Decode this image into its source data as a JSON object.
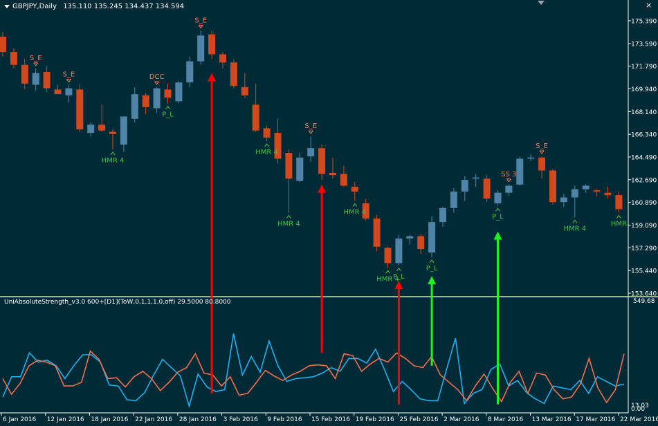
{
  "window": {
    "title": "GBPJPY,Daily",
    "ohlc": "135.110 135.245 134.437 134.594",
    "close_symbol": "×"
  },
  "indicator": {
    "title": "UniAbsoluteStrength_v3.0 600+[D1](ToW,0,1,1,1,0,off) 29.5000 80.8000",
    "top_value": "549.68",
    "bottom_value_a": "13.03",
    "bottom_value_b": "0.00"
  },
  "colors": {
    "background": "#002b36",
    "bull": "#4f83a8",
    "bear": "#d3491d",
    "pattern_bear": "#f07e5e",
    "pattern_bull": "#41c541",
    "arrow_red": "#ff0000",
    "arrow_green": "#22ee22",
    "line_blue": "#1eb0f0",
    "line_orange": "#f0704e",
    "separator": "#c8e69a",
    "axis": "#ffffff"
  },
  "chart_data": [
    {
      "type": "candlestick",
      "symbol": "GBPJPY",
      "timeframe": "Daily",
      "ylim": [
        152.5,
        176.9
      ],
      "price_labels": [
        "175.390",
        "173.590",
        "171.790",
        "169.940",
        "168.140",
        "166.340",
        "164.490",
        "162.690",
        "160.890",
        "159.090",
        "157.290",
        "155.440",
        "153.640"
      ],
      "date_labels": [
        "6 Jan 2016",
        "12 Jan 2016",
        "18 Jan 2016",
        "22 Jan 2016",
        "28 Jan 2016",
        "3 Feb 2016",
        "9 Feb 2016",
        "15 Feb 2016",
        "19 Feb 2016",
        "25 Feb 2016",
        "2 Mar 2016",
        "8 Mar 2016",
        "13 Mar 2016",
        "17 Mar 2016",
        "22 Mar 2016"
      ],
      "candles": [
        {
          "o": 174.6,
          "h": 175.0,
          "l": 172.9,
          "c": 173.3
        },
        {
          "o": 173.3,
          "h": 173.6,
          "l": 171.9,
          "c": 172.2
        },
        {
          "o": 172.2,
          "h": 172.7,
          "l": 170.1,
          "c": 170.6
        },
        {
          "o": 170.5,
          "h": 171.9,
          "l": 170.0,
          "c": 171.5
        },
        {
          "o": 171.6,
          "h": 172.1,
          "l": 169.9,
          "c": 170.2
        },
        {
          "o": 170.1,
          "h": 170.5,
          "l": 169.7,
          "c": 169.7
        },
        {
          "o": 169.6,
          "h": 170.5,
          "l": 169.0,
          "c": 170.2
        },
        {
          "o": 170.1,
          "h": 170.5,
          "l": 166.5,
          "c": 166.7
        },
        {
          "o": 166.4,
          "h": 167.3,
          "l": 166.1,
          "c": 167.1
        },
        {
          "o": 167.1,
          "h": 168.8,
          "l": 166.5,
          "c": 166.6
        },
        {
          "o": 166.5,
          "h": 166.7,
          "l": 165.0,
          "c": 166.3
        },
        {
          "o": 165.4,
          "h": 167.7,
          "l": 164.8,
          "c": 167.8
        },
        {
          "o": 167.6,
          "h": 170.3,
          "l": 167.3,
          "c": 169.7
        },
        {
          "o": 169.6,
          "h": 169.8,
          "l": 168.0,
          "c": 168.6
        },
        {
          "o": 168.5,
          "h": 170.3,
          "l": 168.1,
          "c": 170.2
        },
        {
          "o": 170.1,
          "h": 170.6,
          "l": 168.9,
          "c": 169.4
        },
        {
          "o": 169.1,
          "h": 170.8,
          "l": 168.9,
          "c": 170.7
        },
        {
          "o": 170.7,
          "h": 172.9,
          "l": 170.3,
          "c": 172.5
        },
        {
          "o": 172.5,
          "h": 175.1,
          "l": 172.2,
          "c": 174.7
        },
        {
          "o": 174.8,
          "h": 175.1,
          "l": 172.7,
          "c": 173.1
        },
        {
          "o": 173.1,
          "h": 173.3,
          "l": 171.9,
          "c": 172.4
        },
        {
          "o": 172.4,
          "h": 172.7,
          "l": 170.2,
          "c": 170.4
        },
        {
          "o": 170.3,
          "h": 171.5,
          "l": 169.4,
          "c": 169.6
        },
        {
          "o": 168.8,
          "h": 170.6,
          "l": 166.5,
          "c": 166.6
        },
        {
          "o": 166.8,
          "h": 167.0,
          "l": 165.7,
          "c": 166.0
        },
        {
          "o": 166.4,
          "h": 167.6,
          "l": 163.8,
          "c": 164.2
        },
        {
          "o": 164.7,
          "h": 165.0,
          "l": 159.6,
          "c": 162.5
        },
        {
          "o": 162.3,
          "h": 164.7,
          "l": 162.2,
          "c": 164.3
        },
        {
          "o": 164.4,
          "h": 166.1,
          "l": 163.9,
          "c": 165.1
        },
        {
          "o": 165.1,
          "h": 165.4,
          "l": 162.4,
          "c": 162.9
        },
        {
          "o": 163.0,
          "h": 164.3,
          "l": 162.5,
          "c": 162.8
        },
        {
          "o": 162.9,
          "h": 163.6,
          "l": 161.8,
          "c": 161.9
        },
        {
          "o": 161.8,
          "h": 162.2,
          "l": 160.6,
          "c": 161.4
        },
        {
          "o": 160.4,
          "h": 160.8,
          "l": 158.9,
          "c": 159.1
        },
        {
          "o": 159.1,
          "h": 159.4,
          "l": 156.3,
          "c": 156.7
        },
        {
          "o": 156.6,
          "h": 156.7,
          "l": 154.9,
          "c": 155.3
        },
        {
          "o": 155.3,
          "h": 157.7,
          "l": 155.1,
          "c": 157.4
        },
        {
          "o": 157.4,
          "h": 157.7,
          "l": 156.9,
          "c": 157.6
        },
        {
          "o": 157.6,
          "h": 157.8,
          "l": 156.1,
          "c": 156.5
        },
        {
          "o": 156.2,
          "h": 159.3,
          "l": 155.8,
          "c": 158.8
        },
        {
          "o": 158.8,
          "h": 160.1,
          "l": 158.4,
          "c": 160.0
        },
        {
          "o": 160.0,
          "h": 161.7,
          "l": 159.6,
          "c": 161.4
        },
        {
          "o": 161.4,
          "h": 162.7,
          "l": 160.6,
          "c": 162.4
        },
        {
          "o": 162.5,
          "h": 162.9,
          "l": 161.8,
          "c": 162.6
        },
        {
          "o": 162.5,
          "h": 162.8,
          "l": 160.5,
          "c": 160.8
        },
        {
          "o": 160.4,
          "h": 161.5,
          "l": 160.2,
          "c": 161.3
        },
        {
          "o": 161.3,
          "h": 162.0,
          "l": 161.0,
          "c": 161.9
        },
        {
          "o": 162.0,
          "h": 164.4,
          "l": 161.9,
          "c": 164.2
        },
        {
          "o": 164.2,
          "h": 164.6,
          "l": 164.0,
          "c": 164.3
        },
        {
          "o": 164.3,
          "h": 164.4,
          "l": 162.5,
          "c": 163.2
        },
        {
          "o": 163.2,
          "h": 163.3,
          "l": 160.3,
          "c": 160.5
        },
        {
          "o": 160.5,
          "h": 161.2,
          "l": 160.1,
          "c": 160.9
        },
        {
          "o": 160.9,
          "h": 161.9,
          "l": 159.2,
          "c": 161.6
        },
        {
          "o": 161.6,
          "h": 162.0,
          "l": 161.3,
          "c": 161.9
        },
        {
          "o": 161.5,
          "h": 161.6,
          "l": 161.0,
          "c": 161.4
        },
        {
          "o": 161.3,
          "h": 161.8,
          "l": 160.8,
          "c": 161.1
        },
        {
          "o": 161.1,
          "h": 161.4,
          "l": 159.6,
          "c": 159.9
        }
      ],
      "patterns": [
        {
          "i": 3,
          "label": "S_E",
          "side": "above"
        },
        {
          "i": 6,
          "label": "S_E",
          "side": "above"
        },
        {
          "i": 10,
          "label": "HMR 4",
          "side": "below"
        },
        {
          "i": 14,
          "label": "DCC",
          "side": "above"
        },
        {
          "i": 15,
          "label": "P_L",
          "side": "below"
        },
        {
          "i": 18,
          "label": "S_E",
          "side": "above"
        },
        {
          "i": 24,
          "label": "HMR 4",
          "side": "below"
        },
        {
          "i": 26,
          "label": "HMR 4",
          "side": "below"
        },
        {
          "i": 28,
          "label": "S_E",
          "side": "above"
        },
        {
          "i": 32,
          "label": "HMR 4",
          "side": "below"
        },
        {
          "i": 35,
          "label": "HMR 4",
          "side": "below"
        },
        {
          "i": 36,
          "label": "P_L",
          "side": "below"
        },
        {
          "i": 39,
          "label": "P_L",
          "side": "below"
        },
        {
          "i": 45,
          "label": "P_L",
          "side": "below"
        },
        {
          "i": 46,
          "label": "SS 3",
          "side": "above"
        },
        {
          "i": 49,
          "label": "S_E",
          "side": "above"
        },
        {
          "i": 52,
          "label": "HMR 4",
          "side": "below"
        },
        {
          "i": 56,
          "label": "HMR",
          "side": "below"
        }
      ],
      "signal_arrows": [
        {
          "i": 19,
          "dir": "up",
          "color": "red",
          "from_ind": 80,
          "to_price": 171.5
        },
        {
          "i": 29,
          "dir": "up",
          "color": "red",
          "from_ind": 300,
          "to_price": 162.0
        },
        {
          "i": 36,
          "dir": "up",
          "color": "red",
          "from_ind": 20,
          "to_price": 153.8
        },
        {
          "i": 39,
          "dir": "up",
          "color": "green",
          "from_ind": 230,
          "to_price": 154.2
        },
        {
          "i": 45,
          "dir": "up",
          "color": "green",
          "from_ind": 20,
          "to_price": 158.0
        }
      ]
    },
    {
      "type": "line",
      "title": "UniAbsoluteStrength_v3.0 600+[D1](ToW,0,1,1,1,0,off) 29.5000 80.8000",
      "ylim": [
        0,
        549.68
      ],
      "series": [
        {
          "color": "blue",
          "values": [
            60,
            170,
            170,
            300,
            250,
            260,
            230,
            160,
            230,
            290,
            290,
            250,
            125,
            120,
            45,
            40,
            85,
            180,
            265,
            220,
            175,
            10,
            185,
            115,
            90,
            100,
            405,
            180,
            280,
            195,
            365,
            230,
            145,
            160,
            165,
            170,
            190,
            220,
            200,
            270,
            270,
            245,
            320,
            210,
            90,
            145,
            100,
            50,
            40,
            40,
            210,
            380,
            25,
            80,
            100,
            210,
            240,
            120,
            150,
            85,
            50,
            25,
            120,
            110,
            100,
            150,
            80,
            170,
            145,
            120,
            130
          ]
        },
        {
          "color": "orange",
          "values": [
            160,
            75,
            135,
            230,
            260,
            250,
            230,
            120,
            120,
            140,
            310,
            265,
            160,
            165,
            115,
            170,
            200,
            160,
            95,
            140,
            195,
            220,
            295,
            190,
            180,
            120,
            170,
            70,
            80,
            140,
            205,
            175,
            150,
            180,
            200,
            230,
            235,
            230,
            160,
            295,
            285,
            200,
            240,
            270,
            250,
            300,
            270,
            230,
            220,
            280,
            180,
            140,
            100,
            40,
            120,
            185,
            105,
            35,
            140,
            200,
            80,
            190,
            180,
            100,
            50,
            60,
            130,
            270,
            110,
            30,
            100,
            295
          ]
        }
      ]
    }
  ]
}
